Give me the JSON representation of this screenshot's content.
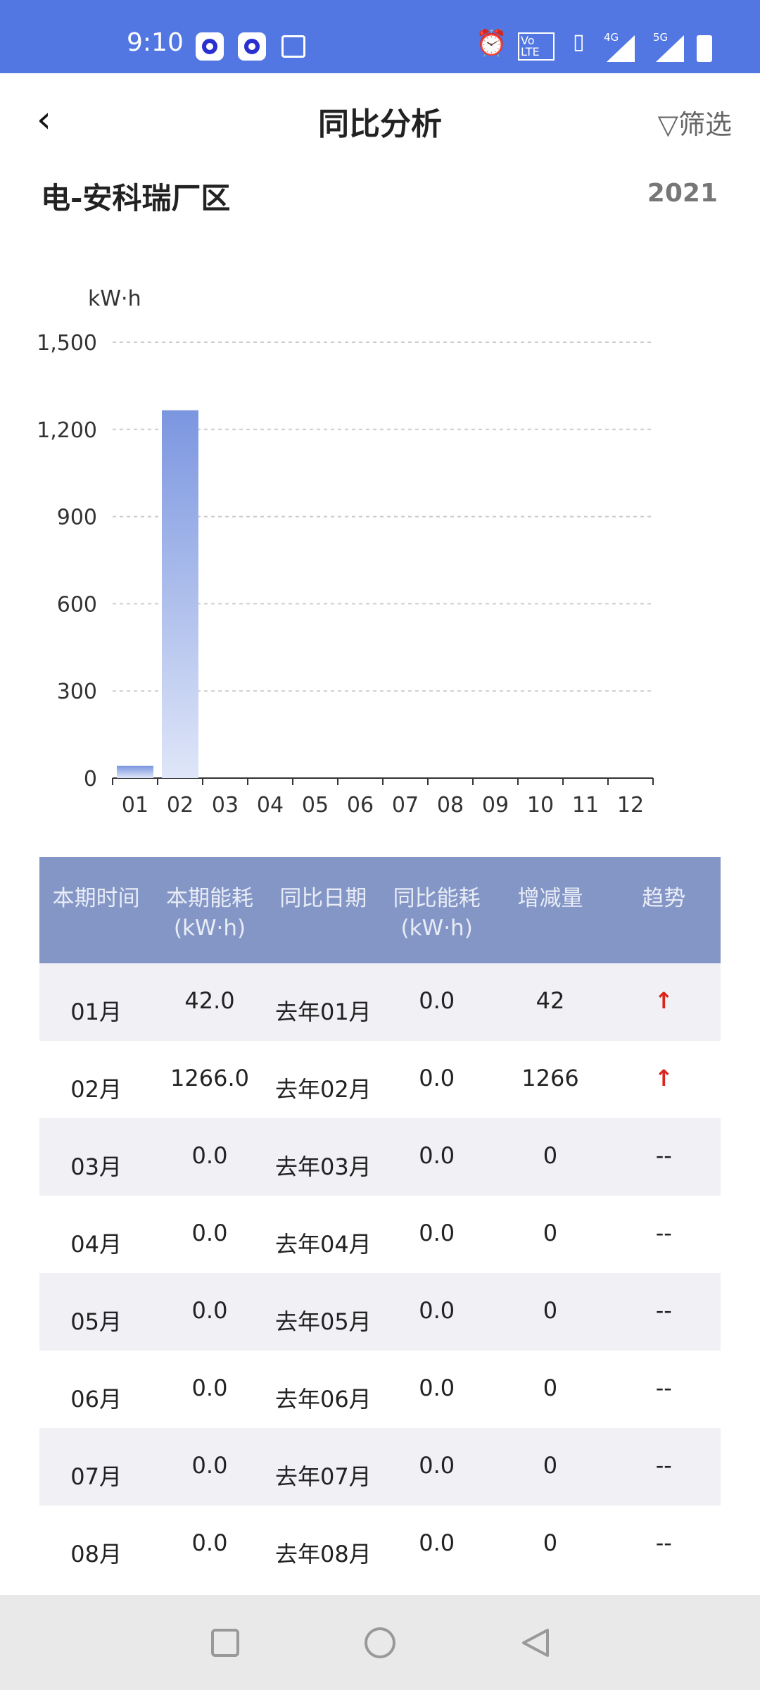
{
  "status_bar": {
    "time": "9:10",
    "network": [
      "4G",
      "5G"
    ],
    "volte": "Vo LTE",
    "color": "#5277e3"
  },
  "header": {
    "back_icon": "chevron-left-icon",
    "title": "同比分析",
    "filter_label": "筛选",
    "filter_icon": "funnel-icon"
  },
  "subtitle": "电-安科瑞厂区",
  "year": "2021",
  "chart_data": {
    "type": "bar",
    "ylabel": "kW·h",
    "categories": [
      "01",
      "02",
      "03",
      "04",
      "05",
      "06",
      "07",
      "08",
      "09",
      "10",
      "11",
      "12"
    ],
    "values": [
      42,
      1266,
      0,
      0,
      0,
      0,
      0,
      0,
      0,
      0,
      0,
      0
    ],
    "ylim": [
      0,
      1500
    ],
    "yticks": [
      "0",
      "300",
      "600",
      "900",
      "1,200",
      "1,500"
    ],
    "grid": true,
    "bar_color": "#7b96e0"
  },
  "table": {
    "headers": [
      [
        "本期时间",
        ""
      ],
      [
        "本期能耗",
        "(kW·h)"
      ],
      [
        "同比日期",
        ""
      ],
      [
        "同比能耗",
        "(kW·h)"
      ],
      [
        "增减量",
        ""
      ],
      [
        "趋势",
        ""
      ]
    ],
    "header_color": "#8496c6",
    "rows": [
      [
        "01月",
        "42.0",
        "去年01月",
        "0.0",
        "42",
        "↑"
      ],
      [
        "02月",
        "1266.0",
        "去年02月",
        "0.0",
        "1266",
        "↑"
      ],
      [
        "03月",
        "0.0",
        "去年03月",
        "0.0",
        "0",
        "--"
      ],
      [
        "04月",
        "0.0",
        "去年04月",
        "0.0",
        "0",
        "--"
      ],
      [
        "05月",
        "0.0",
        "去年05月",
        "0.0",
        "0",
        "--"
      ],
      [
        "06月",
        "0.0",
        "去年06月",
        "0.0",
        "0",
        "--"
      ],
      [
        "07月",
        "0.0",
        "去年07月",
        "0.0",
        "0",
        "--"
      ],
      [
        "08月",
        "0.0",
        "去年08月",
        "0.0",
        "0",
        "--"
      ]
    ]
  },
  "nav": {
    "buttons": [
      "recents-icon",
      "home-icon",
      "back-icon"
    ]
  }
}
